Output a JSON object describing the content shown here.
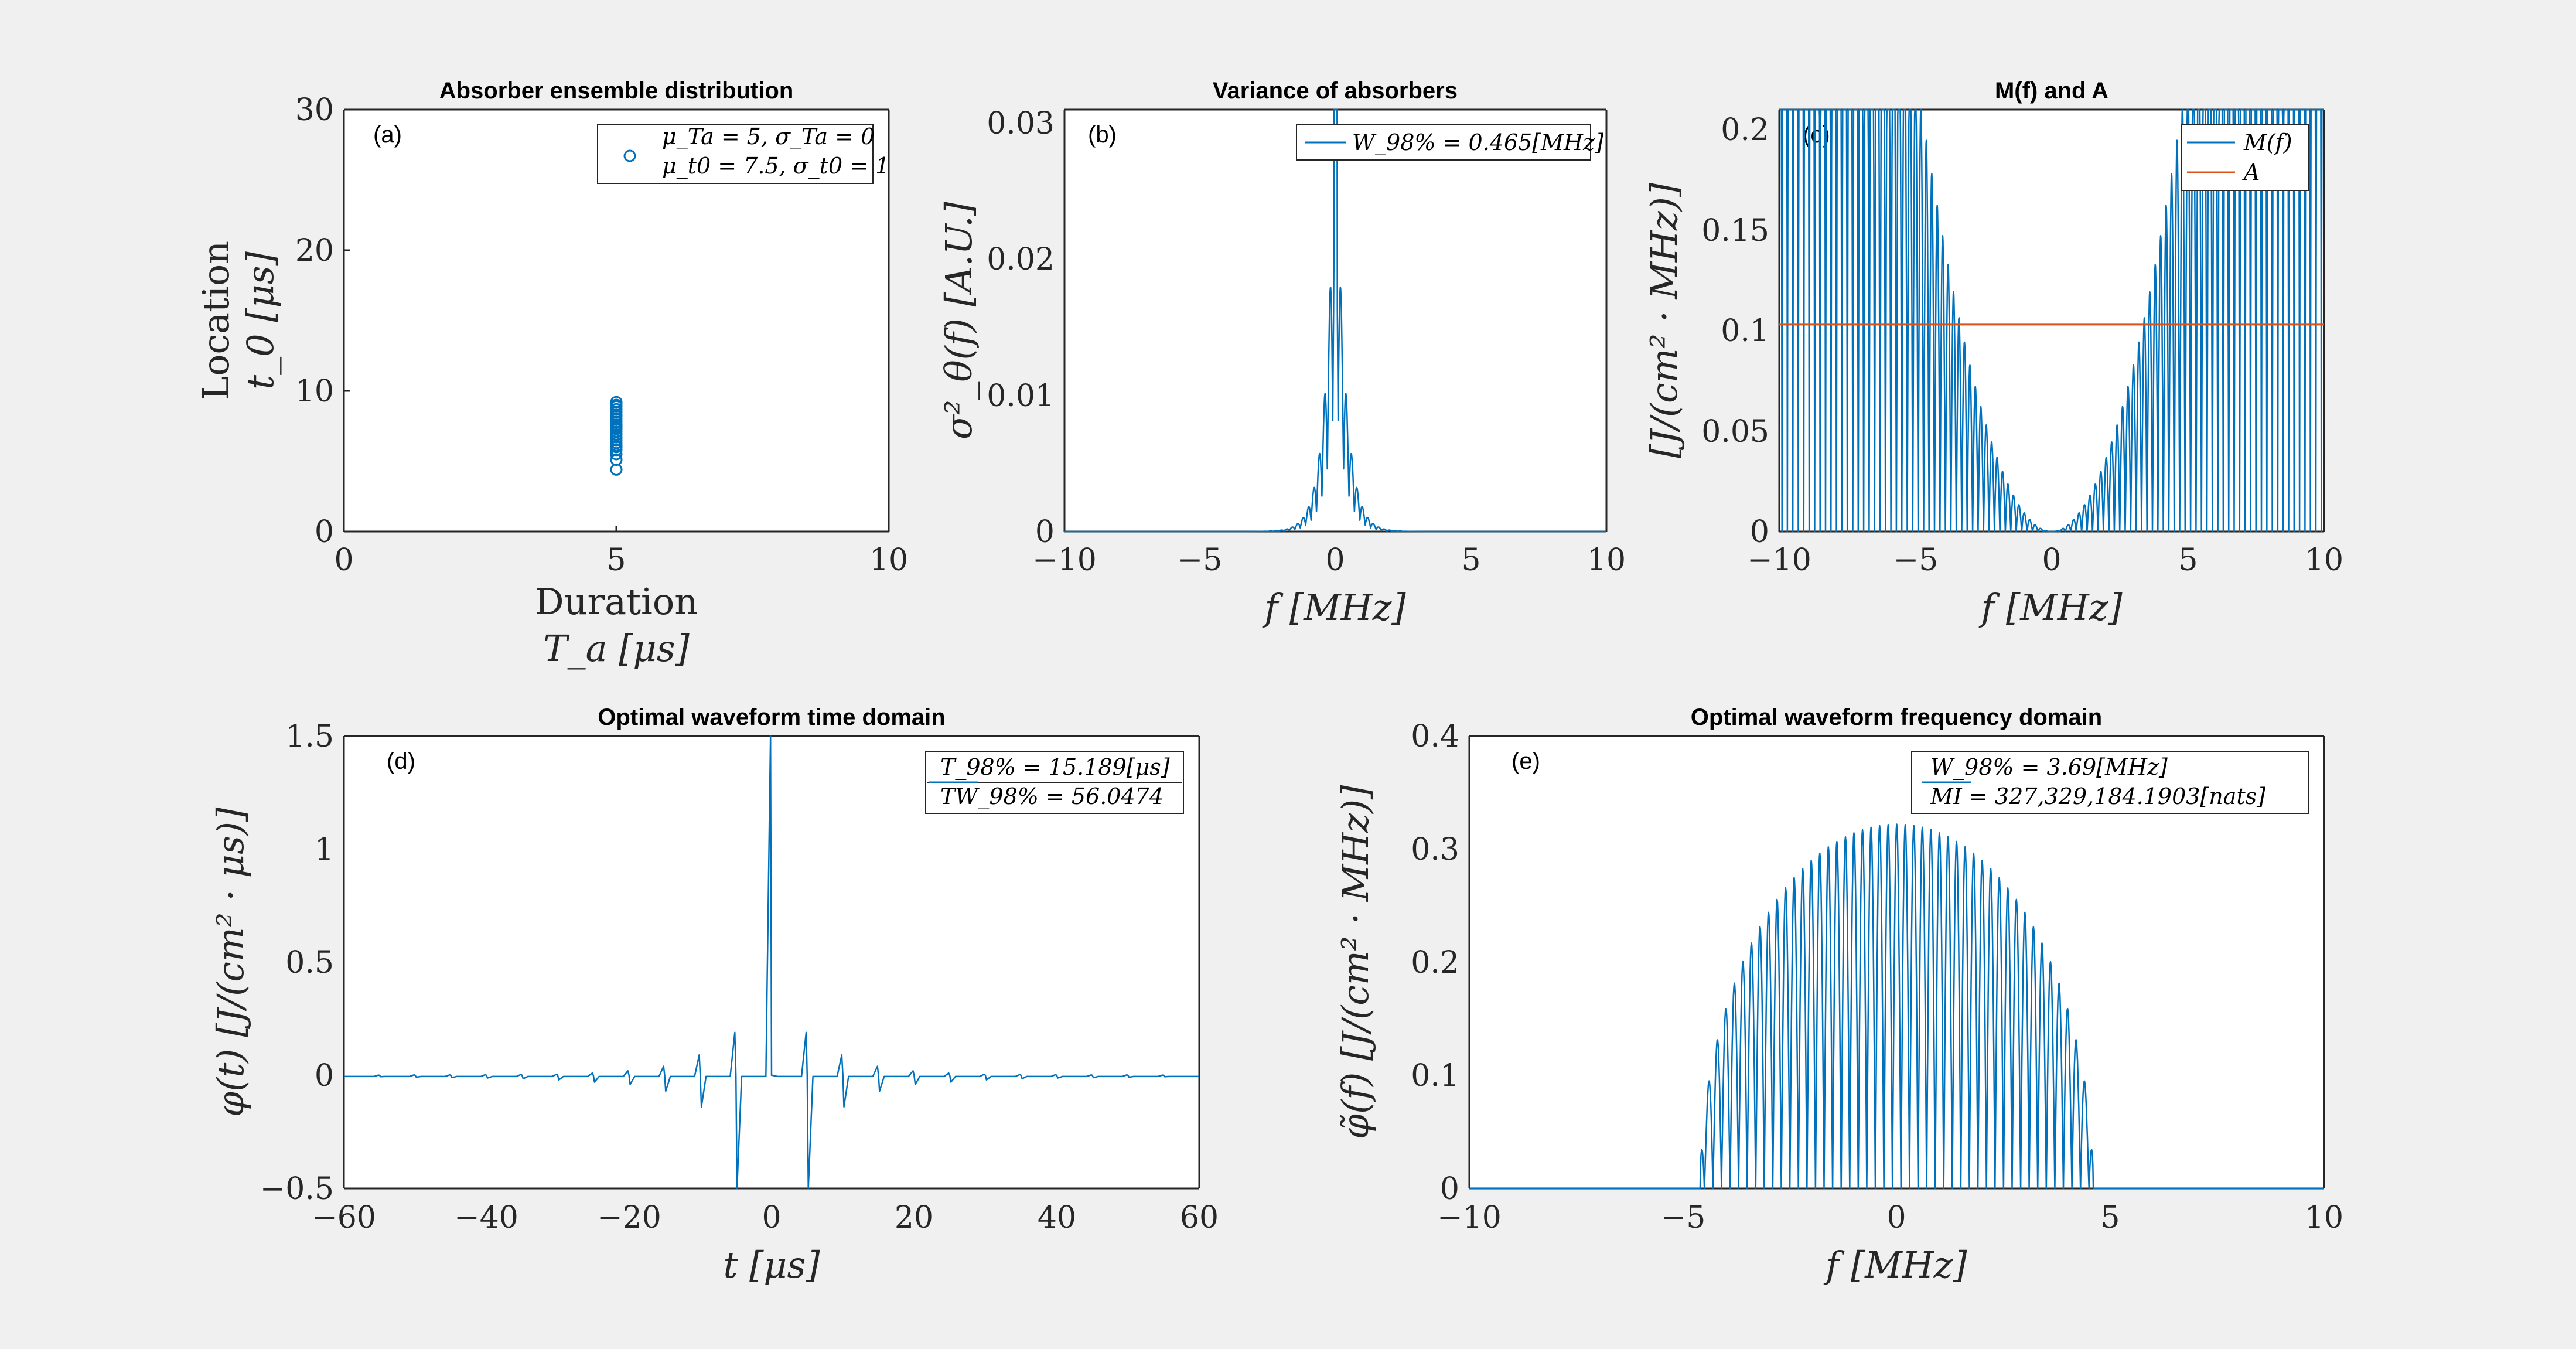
{
  "figure": {
    "background": "#f0f0f0",
    "blue": "#0072BD",
    "orange": "#D95319"
  },
  "chart_data": [
    {
      "id": "a",
      "type": "scatter",
      "panel_label": "(a)",
      "title": "Absorber ensemble distribution",
      "xlabel_line1": "Duration",
      "xlabel_line2": "T_a    [μs]",
      "ylabel_line1": "Location",
      "ylabel_line2": "t_0    [μs]",
      "xlim": [
        0,
        10
      ],
      "ylim": [
        0,
        30
      ],
      "xticks": [
        "0",
        "5",
        "10"
      ],
      "yticks": [
        "0",
        "10",
        "20",
        "30"
      ],
      "legend": [
        "μ_Ta = 5,    σ_Ta = 0",
        "μ_t0 = 7.5,    σ_t0 = 1"
      ],
      "x": [
        5,
        5,
        5,
        5,
        5,
        5,
        5,
        5,
        5,
        5,
        5,
        5,
        5,
        5,
        5,
        5,
        5,
        5,
        5,
        5,
        5,
        5,
        5,
        5
      ],
      "y": [
        4.4,
        5.1,
        5.5,
        5.8,
        6.0,
        6.3,
        6.5,
        6.7,
        6.9,
        7.1,
        7.3,
        7.5,
        7.6,
        7.8,
        8.0,
        8.2,
        8.3,
        8.5,
        8.7,
        8.9,
        9.0,
        9.2,
        7.4,
        6.1
      ]
    },
    {
      "id": "b",
      "type": "line",
      "panel_label": "(b)",
      "title": "Variance of absorbers",
      "xlabel": "f    [MHz]",
      "ylabel": "σ²_θ(f)    [A.U.]",
      "xlim": [
        -10,
        10
      ],
      "ylim": [
        0,
        0.031
      ],
      "xticks": [
        "−10",
        "−5",
        "0",
        "5",
        "10"
      ],
      "yticks": [
        "0",
        "0.01",
        "0.02",
        "0.03"
      ],
      "legend": [
        "W_98% = 0.465[MHz]"
      ],
      "series": [
        {
          "name": "variance",
          "peak": 0.031,
          "sidelobe_period_mhz": 0.2,
          "decay_mhz": 0.35
        }
      ]
    },
    {
      "id": "c",
      "type": "line",
      "panel_label": "(c)",
      "title": "M(f) and A",
      "xlabel": "f    [MHz]",
      "ylabel": "[J/(cm² · MHz)]",
      "xlim": [
        -10,
        10
      ],
      "ylim": [
        0,
        0.21
      ],
      "xticks": [
        "−10",
        "−5",
        "0",
        "5",
        "10"
      ],
      "yticks": [
        "0",
        "0.05",
        "0.1",
        "0.15",
        "0.2"
      ],
      "legend": [
        "M(f)",
        "A"
      ],
      "series": [
        {
          "name": "M(f)",
          "model": "0.0092*f^2 * oscillation",
          "oscillation_period_mhz": 0.2
        },
        {
          "name": "A",
          "value": 0.103
        }
      ]
    },
    {
      "id": "d",
      "type": "line",
      "panel_label": "(d)",
      "title": "Optimal waveform time domain",
      "xlabel": "t    [μs]",
      "ylabel": "φ(t)    [J/(cm² · μs)]",
      "xlim": [
        -60,
        60
      ],
      "ylim": [
        -0.5,
        1.5
      ],
      "xticks": [
        "−60",
        "−40",
        "−20",
        "0",
        "20",
        "40",
        "60"
      ],
      "yticks": [
        "−0.5",
        "0",
        "0.5",
        "1",
        "1.5"
      ],
      "legend": [
        "T_98% = 15.189[μs]",
        "TW_98% = 56.0474"
      ],
      "series": [
        {
          "name": "phi",
          "main_peak": {
            "t": 0,
            "value": 1.5
          },
          "pulses": [
            {
              "t": -5,
              "up": 0.19,
              "down": -0.5
            },
            {
              "t": 5,
              "up": 0.19,
              "down": -0.5
            },
            {
              "t": -10,
              "up": 0.09,
              "down": -0.14
            },
            {
              "t": 10,
              "up": 0.09,
              "down": -0.14
            },
            {
              "t": -15,
              "up": 0.04,
              "down": -0.07
            },
            {
              "t": 15,
              "up": 0.04,
              "down": -0.07
            },
            {
              "t": -20,
              "up": 0.02,
              "down": -0.04
            },
            {
              "t": 20,
              "up": 0.02,
              "down": -0.04
            },
            {
              "t": -25,
              "up": 0.01,
              "down": -0.03
            },
            {
              "t": 25,
              "up": 0.01,
              "down": -0.03
            },
            {
              "t": -30,
              "up": 0.005,
              "down": -0.02
            },
            {
              "t": 30,
              "up": 0.005,
              "down": -0.02
            },
            {
              "t": -35,
              "up": 0.004,
              "down": -0.015
            },
            {
              "t": 35,
              "up": 0.004,
              "down": -0.015
            },
            {
              "t": -40,
              "up": 0.003,
              "down": -0.012
            },
            {
              "t": 40,
              "up": 0.003,
              "down": -0.012
            },
            {
              "t": -45,
              "up": 0.002,
              "down": -0.01
            },
            {
              "t": 45,
              "up": 0.002,
              "down": -0.01
            },
            {
              "t": -50,
              "up": 0.002,
              "down": -0.008
            },
            {
              "t": 50,
              "up": 0.002,
              "down": -0.008
            },
            {
              "t": -55,
              "up": 0.001,
              "down": -0.006
            },
            {
              "t": 55,
              "up": 0.001,
              "down": -0.006
            }
          ]
        }
      ]
    },
    {
      "id": "e",
      "type": "line",
      "panel_label": "(e)",
      "title": "Optimal waveform frequency domain",
      "xlabel": "f    [MHz]",
      "ylabel": "φ̃(f)    [J/(cm² · MHz)]",
      "xlim": [
        -10,
        10
      ],
      "ylim": [
        0,
        0.4
      ],
      "xticks": [
        "−10",
        "−5",
        "0",
        "5",
        "10"
      ],
      "yticks": [
        "0",
        "0.1",
        "0.2",
        "0.3",
        "0.4"
      ],
      "legend": [
        "W_98% = 3.69[MHz]",
        "MI = 327,329,184.1903[nats]"
      ],
      "series": [
        {
          "name": "phi_tilde",
          "peak": 0.322,
          "support_mhz": [
            -4.6,
            4.6
          ],
          "oscillation_period_mhz": 0.2
        }
      ]
    }
  ]
}
